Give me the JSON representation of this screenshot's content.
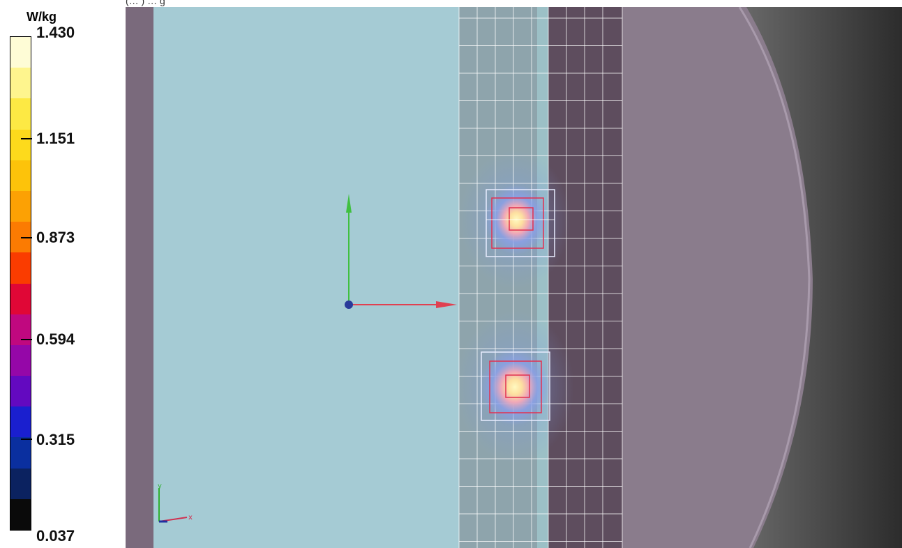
{
  "legend": {
    "unit": "W/kg",
    "ticks": [
      "1.430",
      "1.151",
      "0.873",
      "0.594",
      "0.315",
      "0.037"
    ],
    "colors": [
      "#fefcd6",
      "#fef58e",
      "#fde944",
      "#fdda1c",
      "#fdc30a",
      "#fca104",
      "#fb7b02",
      "#fa3c00",
      "#e00736",
      "#c0087f",
      "#9507a8",
      "#6309c0",
      "#1a1fcf",
      "#0a2f9f",
      "#0b2260",
      "#0a0a0a"
    ]
  },
  "header": {
    "partial_text": "(… ) … g"
  },
  "viewport": {
    "background_color": "#8a7c8c",
    "phantom_color": "#a5cbd4",
    "dark_band_color": "#5e4d5e",
    "grid_color": "#ffffff",
    "axes": {
      "x_label": "x",
      "y_label": "y"
    },
    "icons": [
      "origin-axes-icon",
      "mini-axes-icon"
    ]
  }
}
